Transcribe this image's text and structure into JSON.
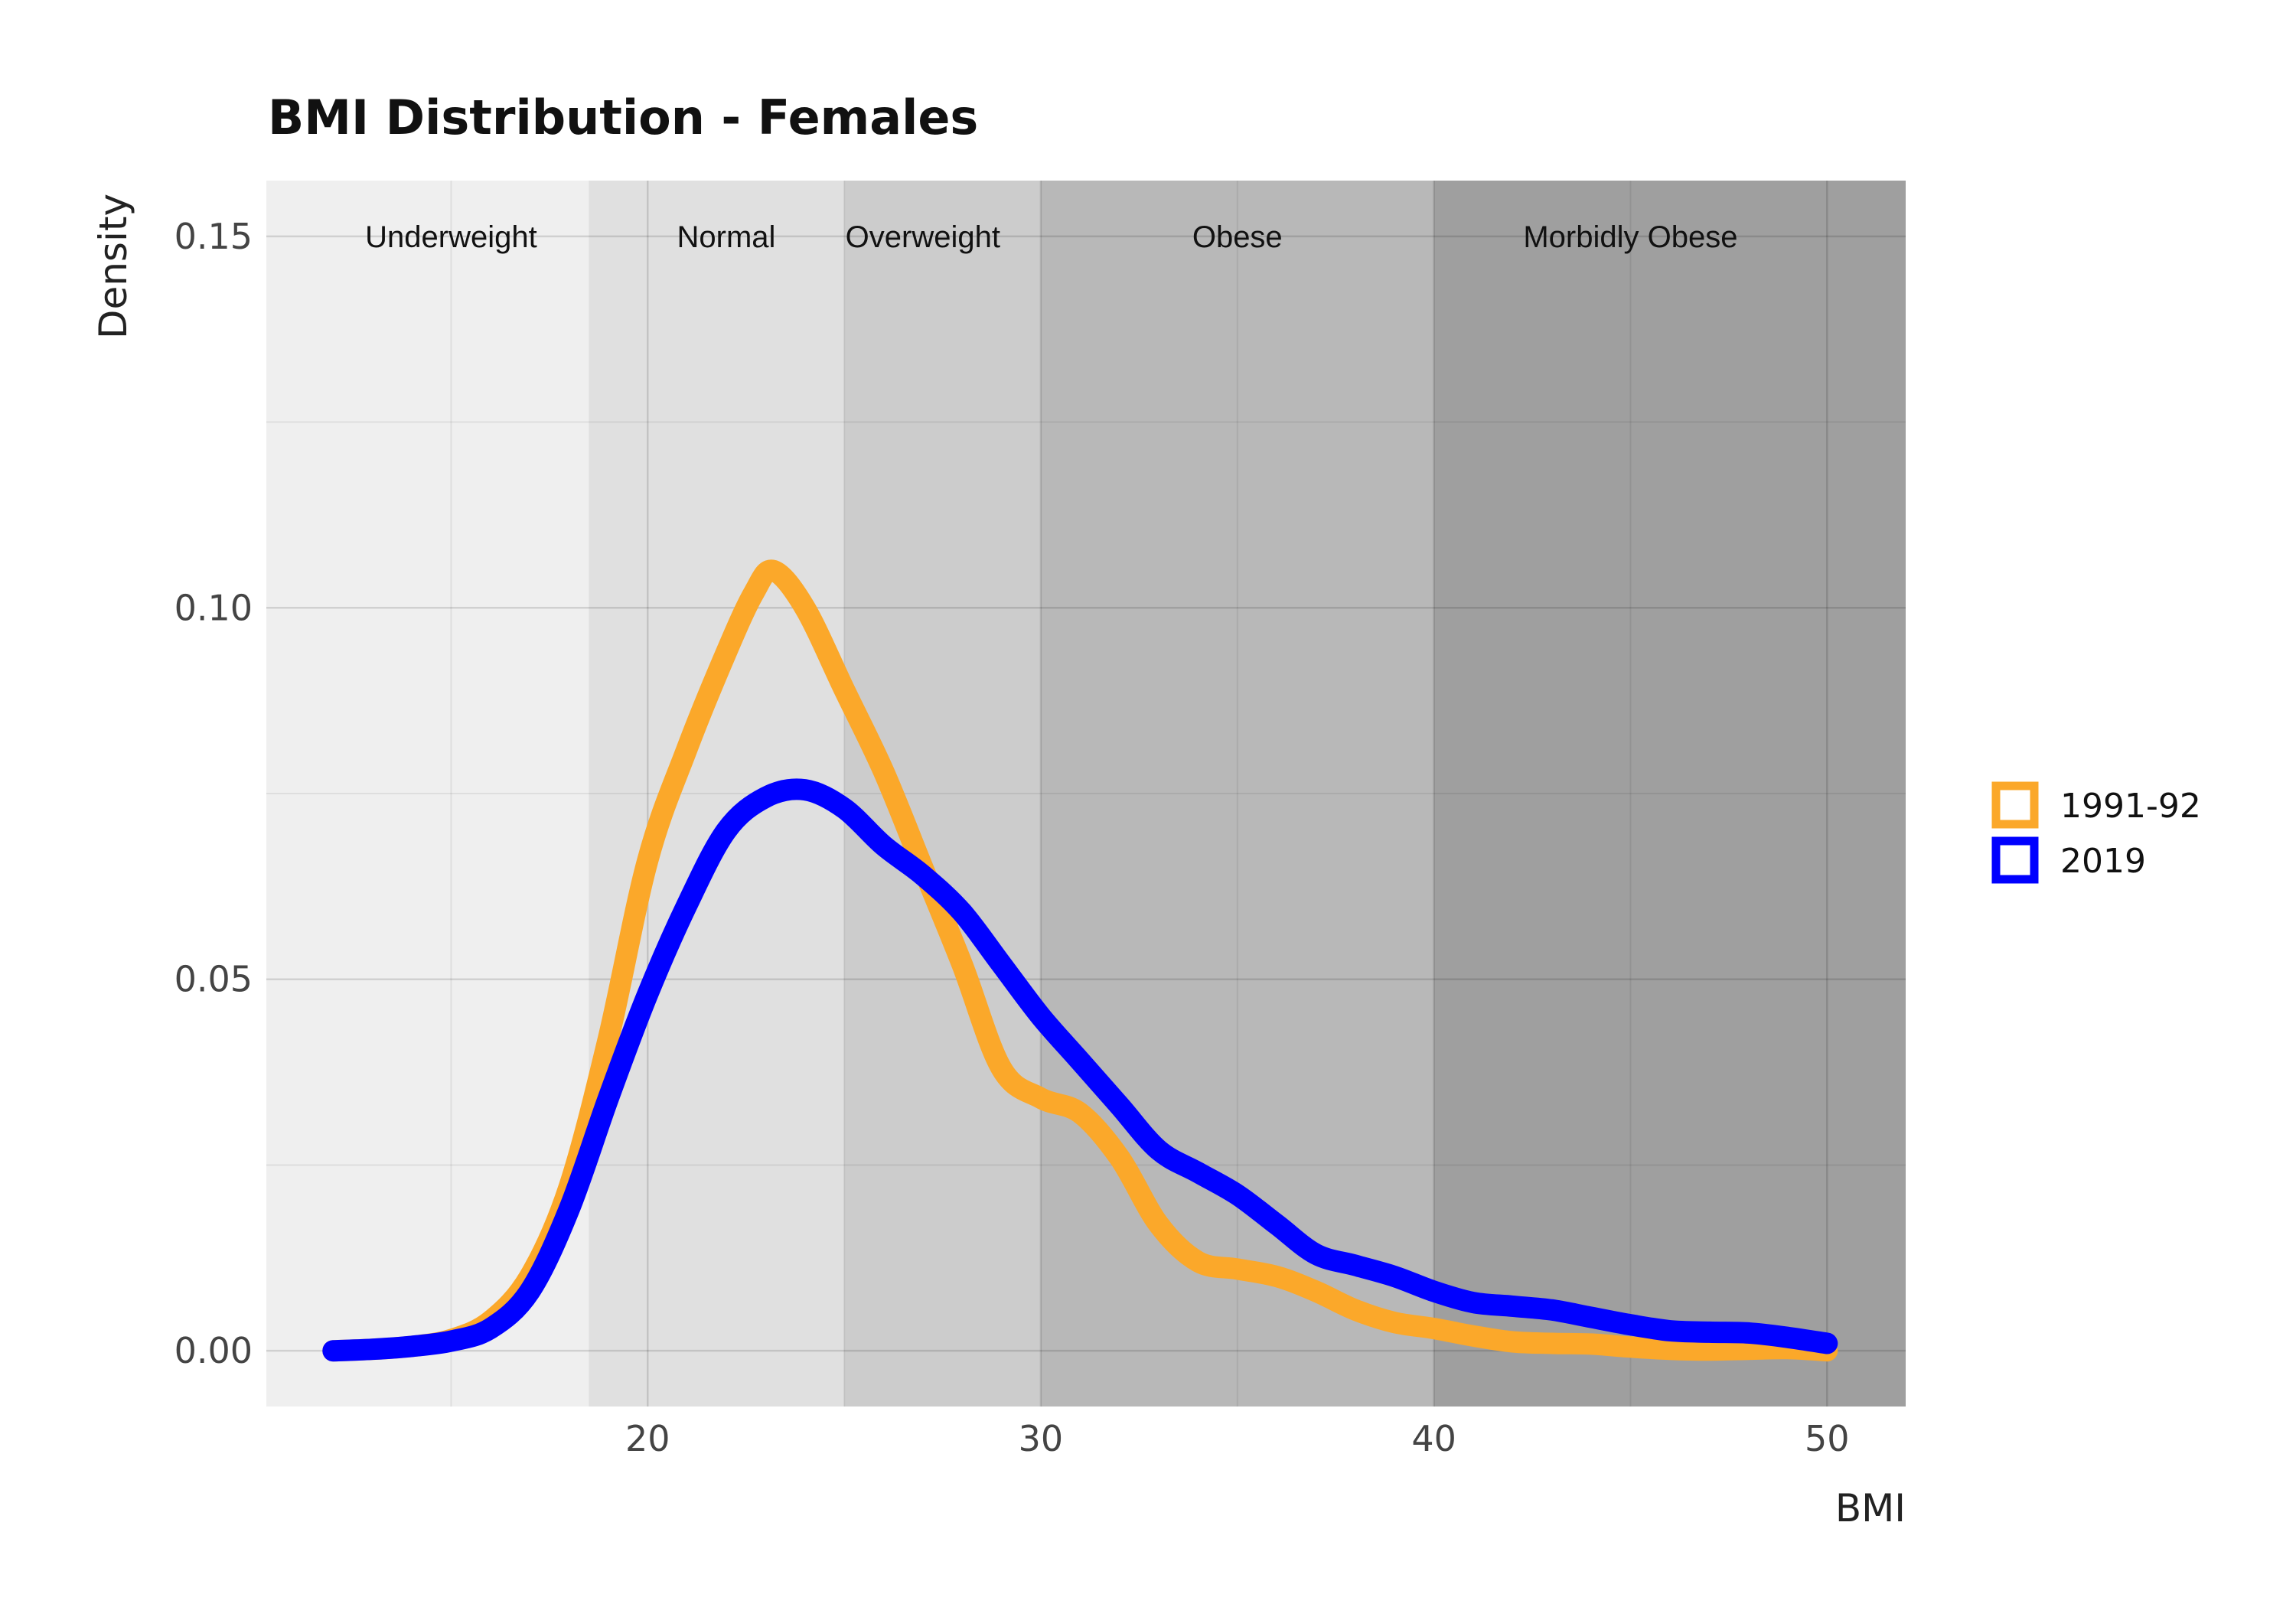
{
  "chart_data": {
    "type": "line",
    "title": "BMI Distribution - Females",
    "xlabel": "BMI",
    "ylabel": "Density",
    "xlim": [
      10.3,
      52
    ],
    "ylim": [
      -0.0075,
      0.1575
    ],
    "x_ticks": [
      20,
      30,
      40,
      50
    ],
    "x_tick_labels": [
      "20",
      "30",
      "40",
      "50"
    ],
    "y_ticks": [
      0.0,
      0.05,
      0.1,
      0.15
    ],
    "y_tick_labels": [
      "0.00",
      "0.05",
      "0.10",
      "0.15"
    ],
    "grid": true,
    "legend_position": "right",
    "bands": [
      {
        "label": "Underweight",
        "from": 10.3,
        "to": 18.5,
        "color": "#efefef"
      },
      {
        "label": "Normal",
        "from": 18.5,
        "to": 25,
        "color": "#e0e0e0"
      },
      {
        "label": "Overweight",
        "from": 25,
        "to": 30,
        "color": "#cccccc"
      },
      {
        "label": "Obese",
        "from": 30,
        "to": 40,
        "color": "#b8b8b8"
      },
      {
        "label": "Morbidly Obese",
        "from": 40,
        "to": 52,
        "color": "#9f9f9f"
      }
    ],
    "band_label_positions": [
      15,
      22,
      27,
      35,
      45
    ],
    "band_label_y": 0.15,
    "series": [
      {
        "name": "1991-92",
        "color": "#FBA82A",
        "points": [
          [
            12,
            0.0
          ],
          [
            13,
            0.0002
          ],
          [
            14,
            0.0006
          ],
          [
            15,
            0.0015
          ],
          [
            16,
            0.004
          ],
          [
            17,
            0.01
          ],
          [
            18,
            0.022
          ],
          [
            19,
            0.042
          ],
          [
            20,
            0.066
          ],
          [
            21,
            0.081
          ],
          [
            22,
            0.094
          ],
          [
            22.7,
            0.102
          ],
          [
            23.2,
            0.105
          ],
          [
            24,
            0.1
          ],
          [
            25,
            0.089
          ],
          [
            26,
            0.078
          ],
          [
            27,
            0.065
          ],
          [
            28,
            0.052
          ],
          [
            29,
            0.038
          ],
          [
            30,
            0.034
          ],
          [
            31,
            0.032
          ],
          [
            32,
            0.026
          ],
          [
            33,
            0.017
          ],
          [
            34,
            0.012
          ],
          [
            35,
            0.011
          ],
          [
            36,
            0.01
          ],
          [
            37,
            0.008
          ],
          [
            38,
            0.0055
          ],
          [
            39,
            0.0038
          ],
          [
            40,
            0.003
          ],
          [
            41,
            0.002
          ],
          [
            42,
            0.0012
          ],
          [
            43,
            0.001
          ],
          [
            44,
            0.0009
          ],
          [
            45,
            0.0005
          ],
          [
            46,
            0.0002
          ],
          [
            47,
            0.0001
          ],
          [
            48,
            0.0002
          ],
          [
            49,
            0.0003
          ],
          [
            50,
            0.0
          ]
        ]
      },
      {
        "name": "2019",
        "color": "#0000FF",
        "points": [
          [
            12,
            0.0
          ],
          [
            13,
            0.0002
          ],
          [
            14,
            0.0006
          ],
          [
            15,
            0.0013
          ],
          [
            16,
            0.003
          ],
          [
            17,
            0.008
          ],
          [
            18,
            0.019
          ],
          [
            19,
            0.034
          ],
          [
            20,
            0.048
          ],
          [
            21,
            0.06
          ],
          [
            22,
            0.07
          ],
          [
            23,
            0.0745
          ],
          [
            24,
            0.0755
          ],
          [
            25,
            0.073
          ],
          [
            26,
            0.068
          ],
          [
            27,
            0.064
          ],
          [
            28,
            0.059
          ],
          [
            29,
            0.052
          ],
          [
            30,
            0.045
          ],
          [
            31,
            0.039
          ],
          [
            32,
            0.033
          ],
          [
            33,
            0.027
          ],
          [
            34,
            0.024
          ],
          [
            35,
            0.021
          ],
          [
            36,
            0.017
          ],
          [
            37,
            0.013
          ],
          [
            38,
            0.0115
          ],
          [
            39,
            0.01
          ],
          [
            40,
            0.008
          ],
          [
            41,
            0.0065
          ],
          [
            42,
            0.006
          ],
          [
            43,
            0.0055
          ],
          [
            44,
            0.0045
          ],
          [
            45,
            0.0035
          ],
          [
            46,
            0.0027
          ],
          [
            47,
            0.0025
          ],
          [
            48,
            0.0024
          ],
          [
            49,
            0.0018
          ],
          [
            50,
            0.001
          ]
        ]
      }
    ]
  }
}
